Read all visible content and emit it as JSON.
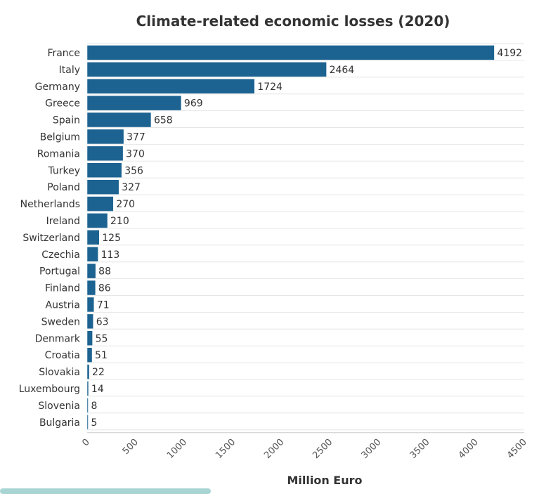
{
  "chart_data": {
    "type": "bar",
    "orientation": "horizontal",
    "title": "Climate-related economic losses (2020)",
    "xlabel": "Million Euro",
    "ylabel": "",
    "xlim": [
      0,
      4500
    ],
    "x_ticks": [
      0,
      500,
      1000,
      1500,
      2000,
      2500,
      3000,
      3500,
      4000,
      4500
    ],
    "grid": true,
    "legend": "none",
    "bar_color": "#1d6391",
    "categories": [
      "France",
      "Italy",
      "Germany",
      "Greece",
      "Spain",
      "Belgium",
      "Romania",
      "Turkey",
      "Poland",
      "Netherlands",
      "Ireland",
      "Switzerland",
      "Czechia",
      "Portugal",
      "Finland",
      "Austria",
      "Sweden",
      "Denmark",
      "Croatia",
      "Slovakia",
      "Luxembourg",
      "Slovenia",
      "Bulgaria"
    ],
    "values": [
      4192,
      2464,
      1724,
      969,
      658,
      377,
      370,
      356,
      327,
      270,
      210,
      125,
      113,
      88,
      86,
      71,
      63,
      55,
      51,
      22,
      14,
      8,
      5
    ]
  }
}
